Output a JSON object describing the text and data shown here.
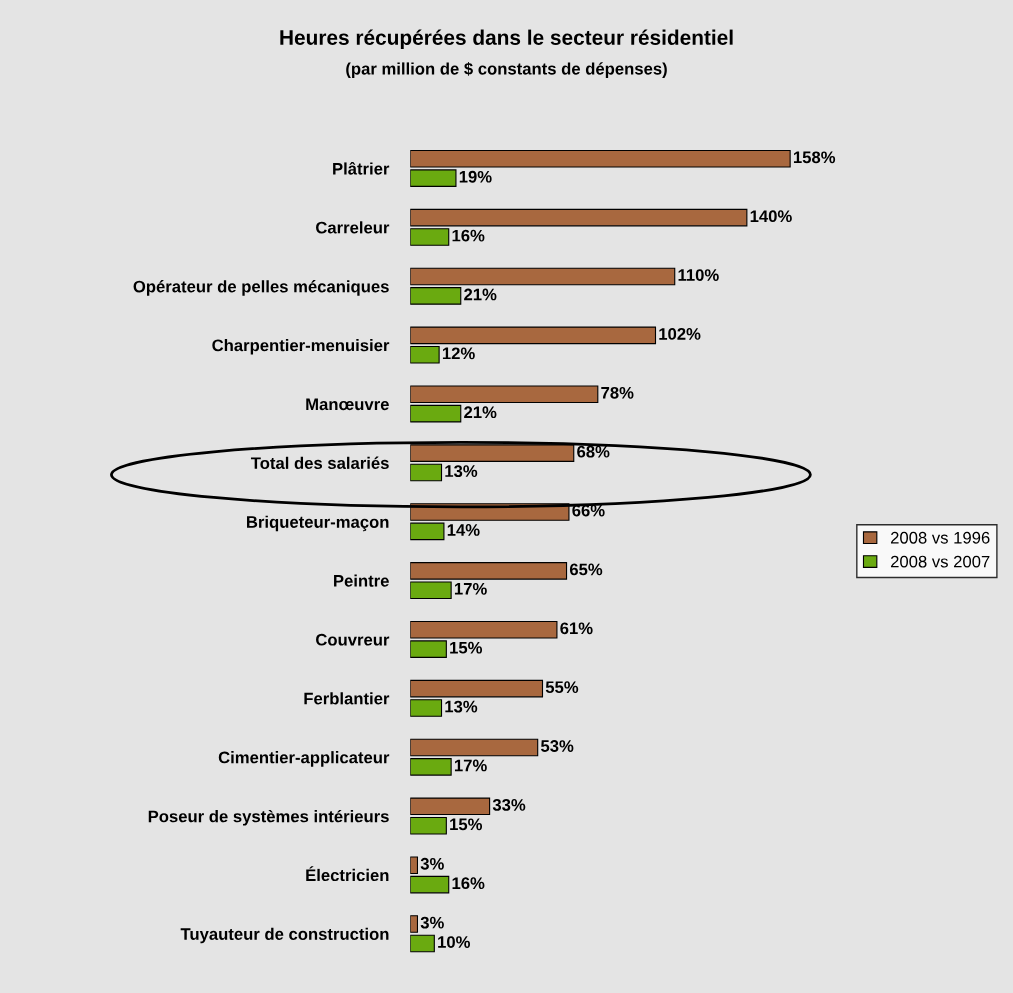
{
  "chart_data": {
    "type": "bar",
    "orientation": "horizontal",
    "title": "Heures récupérées dans le secteur résidentiel",
    "subtitle": "(par million de $ constants de dépenses)",
    "categories": [
      "Plâtrier",
      "Carreleur",
      "Opérateur de pelles mécaniques",
      "Charpentier-menuisier",
      "Manœuvre",
      "Total des salariés",
      "Briqueteur-maçon",
      "Peintre",
      "Couvreur",
      "Ferblantier",
      "Cimentier-applicateur",
      "Poseur de systèmes intérieurs",
      "Électricien",
      "Tuyauteur de construction"
    ],
    "series": [
      {
        "name": "2008 vs 1996",
        "color": "#a8683f",
        "values": [
          158,
          140,
          110,
          102,
          78,
          68,
          66,
          65,
          61,
          55,
          53,
          33,
          3,
          3
        ],
        "value_labels": [
          "158%",
          "140%",
          "110%",
          "102%",
          "78%",
          "68%",
          "66%",
          "65%",
          "61%",
          "55%",
          "53%",
          "33%",
          "3%",
          "3%"
        ]
      },
      {
        "name": "2008 vs 2007",
        "color": "#6aaa10",
        "values": [
          19,
          16,
          21,
          12,
          21,
          13,
          14,
          17,
          15,
          13,
          17,
          15,
          16,
          10
        ],
        "value_labels": [
          "19%",
          "16%",
          "21%",
          "12%",
          "21%",
          "13%",
          "14%",
          "17%",
          "15%",
          "13%",
          "17%",
          "15%",
          "16%",
          "10%"
        ]
      }
    ],
    "legend": "right",
    "grid": false
  }
}
